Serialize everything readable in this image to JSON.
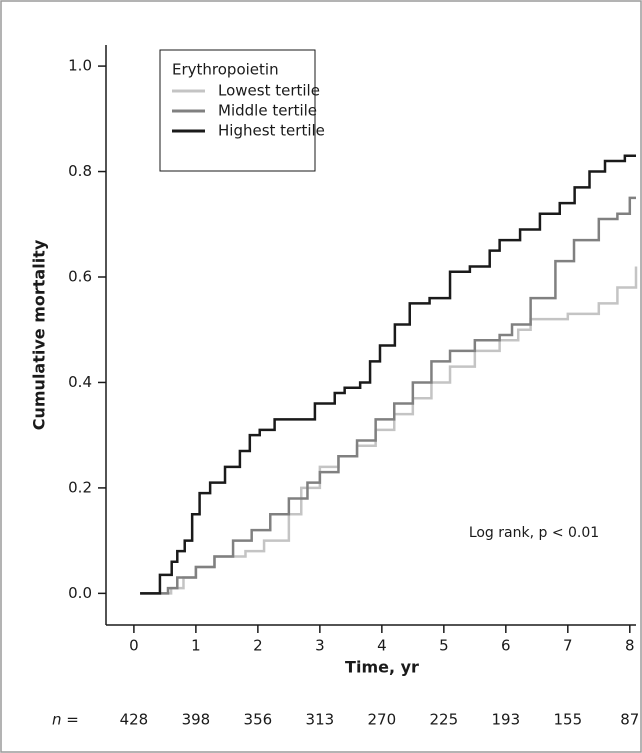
{
  "chart_data": {
    "type": "step",
    "y_label": "Cumulative mortality",
    "x_label": "Time, yr",
    "annotation": "Log rank, p < 0.01",
    "legend_title": "Erythropoietin",
    "legend": "upper-left",
    "xlim": [
      -0.45,
      8.1
    ],
    "ylim": [
      -0.06,
      1.04
    ],
    "xticks": [
      0,
      1,
      2,
      3,
      4,
      5,
      6,
      7,
      8
    ],
    "yticks": [
      {
        "value": 0,
        "label": "0.0"
      },
      0.2,
      0.4,
      0.6,
      0.8,
      {
        "value": 1,
        "label": "1.0"
      }
    ],
    "series": [
      {
        "name": "Lowest tertile",
        "color": "#c4c4c4",
        "x": [
          0.1,
          0.6,
          0.8,
          1.0,
          1.3,
          1.8,
          2.1,
          2.5,
          2.7,
          3.0,
          3.3,
          3.6,
          3.9,
          4.2,
          4.5,
          4.8,
          5.1,
          5.5,
          5.9,
          6.2,
          6.4,
          7.0,
          7.5,
          7.8,
          8.1
        ],
        "values": [
          0,
          0.01,
          0.03,
          0.05,
          0.07,
          0.08,
          0.1,
          0.15,
          0.2,
          0.24,
          0.26,
          0.28,
          0.31,
          0.34,
          0.37,
          0.4,
          0.43,
          0.46,
          0.48,
          0.5,
          0.52,
          0.53,
          0.55,
          0.58,
          0.62
        ]
      },
      {
        "name": "Middle tertile",
        "color": "#808080",
        "x": [
          0.1,
          0.55,
          0.7,
          1.0,
          1.3,
          1.6,
          1.9,
          2.2,
          2.5,
          2.8,
          3.0,
          3.3,
          3.6,
          3.9,
          4.2,
          4.5,
          4.8,
          5.1,
          5.5,
          5.9,
          6.1,
          6.4,
          6.8,
          7.1,
          7.5,
          7.8,
          8.0,
          8.1
        ],
        "values": [
          0,
          0.01,
          0.03,
          0.05,
          0.07,
          0.1,
          0.12,
          0.15,
          0.18,
          0.21,
          0.23,
          0.26,
          0.29,
          0.33,
          0.36,
          0.4,
          0.44,
          0.46,
          0.48,
          0.49,
          0.51,
          0.56,
          0.63,
          0.67,
          0.71,
          0.72,
          0.75,
          0.75
        ]
      },
      {
        "name": "Highest tertile",
        "color": "#1a1a1a",
        "x": [
          0.1,
          0.42,
          0.61,
          0.7,
          0.82,
          0.94,
          1.06,
          1.23,
          1.47,
          1.71,
          1.87,
          2.03,
          2.27,
          2.68,
          2.92,
          3.24,
          3.4,
          3.65,
          3.81,
          3.97,
          4.21,
          4.45,
          4.77,
          5.1,
          5.42,
          5.74,
          5.9,
          6.23,
          6.55,
          6.87,
          7.11,
          7.35,
          7.6,
          7.92,
          8.1
        ],
        "values": [
          0,
          0.035,
          0.06,
          0.08,
          0.1,
          0.15,
          0.19,
          0.21,
          0.24,
          0.27,
          0.3,
          0.31,
          0.33,
          0.33,
          0.36,
          0.38,
          0.39,
          0.4,
          0.44,
          0.47,
          0.51,
          0.55,
          0.56,
          0.61,
          0.62,
          0.65,
          0.67,
          0.69,
          0.72,
          0.74,
          0.77,
          0.8,
          0.82,
          0.83,
          0.83
        ]
      }
    ],
    "at_risk": {
      "label": "n =",
      "values": [
        428,
        398,
        356,
        313,
        270,
        225,
        193,
        155,
        87
      ]
    }
  }
}
